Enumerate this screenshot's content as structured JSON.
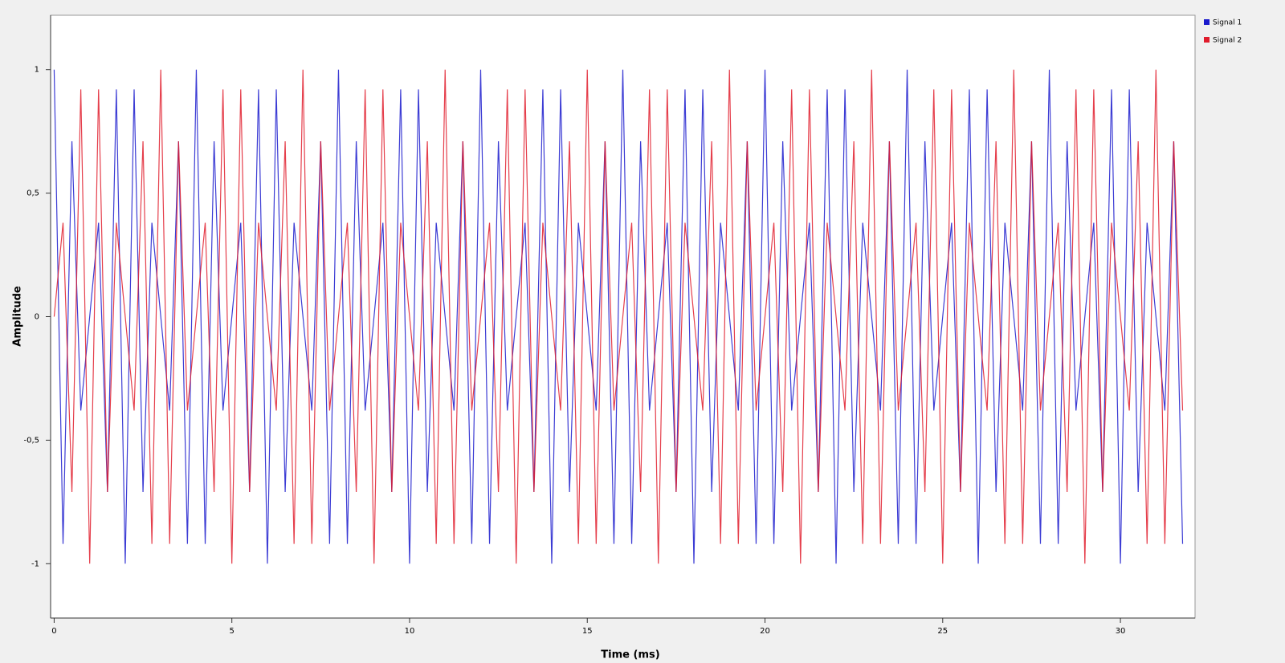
{
  "chart_data": {
    "type": "line",
    "xlabel": "Time (ms)",
    "ylabel": "Amplitude",
    "xlim": [
      -0.1,
      32.1
    ],
    "ylim": [
      -1.22,
      1.22
    ],
    "xticks": [
      0,
      5,
      10,
      15,
      20,
      25,
      30
    ],
    "yticks": [
      -1,
      {
        "value": -0.5,
        "label": "-0,5"
      },
      0,
      {
        "value": 0.5,
        "label": "0,5"
      },
      1
    ],
    "legend": "top-right",
    "x": [
      0,
      0.25,
      0.5,
      0.75,
      1,
      1.25,
      1.5,
      1.75,
      2,
      2.25,
      2.5,
      2.75,
      3,
      3.25,
      3.5,
      3.75,
      4,
      4.25,
      4.5,
      4.75,
      5,
      5.25,
      5.5,
      5.75,
      6,
      6.25,
      6.5,
      6.75,
      7,
      7.25,
      7.5,
      7.75,
      8,
      8.25,
      8.5,
      8.75,
      9,
      9.25,
      9.5,
      9.75,
      10,
      10.25,
      10.5,
      10.75,
      11,
      11.25,
      11.5,
      11.75,
      12,
      12.25,
      12.5,
      12.75,
      13,
      13.25,
      13.5,
      13.75,
      14,
      14.25,
      14.5,
      14.75,
      15,
      15.25,
      15.5,
      15.75,
      16,
      16.25,
      16.5,
      16.75,
      17,
      17.25,
      17.5,
      17.75,
      18,
      18.25,
      18.5,
      18.75,
      19,
      19.25,
      19.5,
      19.75,
      20,
      20.25,
      20.5,
      20.75,
      21,
      21.25,
      21.5,
      21.75,
      22,
      22.25,
      22.5,
      22.75,
      23,
      23.25,
      23.5,
      23.75,
      24,
      24.25,
      24.5,
      24.75,
      25,
      25.25,
      25.5,
      25.75,
      26,
      26.25,
      26.5,
      26.75,
      27,
      27.25,
      27.5,
      27.75,
      28,
      28.25,
      28.5,
      28.75,
      29,
      29.25,
      29.5,
      29.75,
      30,
      30.25,
      30.5,
      30.75,
      31,
      31.25,
      31.5,
      31.75
    ],
    "series": [
      {
        "name": "Signal 1",
        "color": "#1a1acc",
        "values": [
          1,
          -0.92,
          0.71,
          -0.38,
          0,
          0.38,
          -0.71,
          0.92,
          -1,
          0.92,
          -0.71,
          0.38,
          0,
          -0.38,
          0.71,
          -0.92,
          1,
          -0.92,
          0.71,
          -0.38,
          0,
          0.38,
          -0.71,
          0.92,
          -1,
          0.92,
          -0.71,
          0.38,
          0,
          -0.38,
          0.71,
          -0.92,
          1,
          -0.92,
          0.71,
          -0.38,
          0,
          0.38,
          -0.71,
          0.92,
          -1,
          0.92,
          -0.71,
          0.38,
          0,
          -0.38,
          0.71,
          -0.92,
          1,
          -0.92,
          0.71,
          -0.38,
          0,
          0.38,
          -0.71,
          0.92,
          -1,
          0.92,
          -0.71,
          0.38,
          0,
          -0.38,
          0.71,
          -0.92,
          1,
          -0.92,
          0.71,
          -0.38,
          0,
          0.38,
          -0.71,
          0.92,
          -1,
          0.92,
          -0.71,
          0.38,
          0,
          -0.38,
          0.71,
          -0.92,
          1,
          -0.92,
          0.71,
          -0.38,
          0,
          0.38,
          -0.71,
          0.92,
          -1,
          0.92,
          -0.71,
          0.38,
          0,
          -0.38,
          0.71,
          -0.92,
          1,
          -0.92,
          0.71,
          -0.38,
          0,
          0.38,
          -0.71,
          0.92,
          -1,
          0.92,
          -0.71,
          0.38,
          0,
          -0.38,
          0.71,
          -0.92,
          1,
          -0.92,
          0.71,
          -0.38,
          0,
          0.38,
          -0.71,
          0.92,
          -1,
          0.92,
          -0.71,
          0.38,
          0,
          -0.38,
          0.71,
          -0.92
        ]
      },
      {
        "name": "Signal 2",
        "color": "#e01c2c",
        "values": [
          0,
          0.38,
          -0.71,
          0.92,
          -1,
          0.92,
          -0.71,
          0.38,
          0,
          -0.38,
          0.71,
          -0.92,
          1,
          -0.92,
          0.71,
          -0.38,
          0,
          0.38,
          -0.71,
          0.92,
          -1,
          0.92,
          -0.71,
          0.38,
          0,
          -0.38,
          0.71,
          -0.92,
          1,
          -0.92,
          0.71,
          -0.38,
          0,
          0.38,
          -0.71,
          0.92,
          -1,
          0.92,
          -0.71,
          0.38,
          0,
          -0.38,
          0.71,
          -0.92,
          1,
          -0.92,
          0.71,
          -0.38,
          0,
          0.38,
          -0.71,
          0.92,
          -1,
          0.92,
          -0.71,
          0.38,
          0,
          -0.38,
          0.71,
          -0.92,
          1,
          -0.92,
          0.71,
          -0.38,
          0,
          0.38,
          -0.71,
          0.92,
          -1,
          0.92,
          -0.71,
          0.38,
          0,
          -0.38,
          0.71,
          -0.92,
          1,
          -0.92,
          0.71,
          -0.38,
          0,
          0.38,
          -0.71,
          0.92,
          -1,
          0.92,
          -0.71,
          0.38,
          0,
          -0.38,
          0.71,
          -0.92,
          1,
          -0.92,
          0.71,
          -0.38,
          0,
          0.38,
          -0.71,
          0.92,
          -1,
          0.92,
          -0.71,
          0.38,
          0,
          -0.38,
          0.71,
          -0.92,
          1,
          -0.92,
          0.71,
          -0.38,
          0,
          0.38,
          -0.71,
          0.92,
          -1,
          0.92,
          -0.71,
          0.38,
          0,
          -0.38,
          0.71,
          -0.92,
          1,
          -0.92,
          0.71,
          -0.38
        ]
      }
    ]
  }
}
